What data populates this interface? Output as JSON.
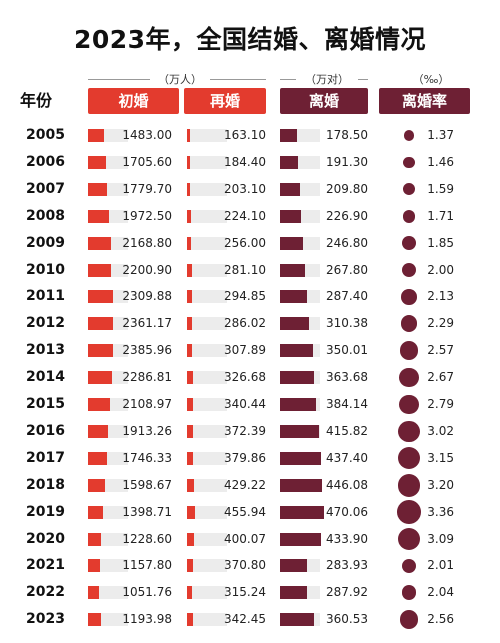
{
  "title": "2023年，全国结婚、离婚情况",
  "units": {
    "marriage": "（万人）",
    "divorce": "（万对）",
    "rate": "（‰）"
  },
  "headers": {
    "year": "年份",
    "first": "初婚",
    "re": "再婚",
    "divorce": "离婚",
    "rate": "离婚率"
  },
  "colors": {
    "marriage": "#e33b2e",
    "divorce": "#6e2034",
    "track": "#ececec"
  },
  "chart_data": {
    "type": "table",
    "title": "2023年，全国结婚、离婚情况",
    "columns": [
      "年份",
      "初婚",
      "再婚",
      "离婚",
      "离婚率"
    ],
    "rows": [
      {
        "year": "2005",
        "first": "1483.00",
        "re": "163.10",
        "divorce": "178.50",
        "rate": "1.37"
      },
      {
        "year": "2006",
        "first": "1705.60",
        "re": "184.40",
        "divorce": "191.30",
        "rate": "1.46"
      },
      {
        "year": "2007",
        "first": "1779.70",
        "re": "203.10",
        "divorce": "209.80",
        "rate": "1.59"
      },
      {
        "year": "2008",
        "first": "1972.50",
        "re": "224.10",
        "divorce": "226.90",
        "rate": "1.71"
      },
      {
        "year": "2009",
        "first": "2168.80",
        "re": "256.00",
        "divorce": "246.80",
        "rate": "1.85"
      },
      {
        "year": "2010",
        "first": "2200.90",
        "re": "281.10",
        "divorce": "267.80",
        "rate": "2.00"
      },
      {
        "year": "2011",
        "first": "2309.88",
        "re": "294.85",
        "divorce": "287.40",
        "rate": "2.13"
      },
      {
        "year": "2012",
        "first": "2361.17",
        "re": "286.02",
        "divorce": "310.38",
        "rate": "2.29"
      },
      {
        "year": "2013",
        "first": "2385.96",
        "re": "307.89",
        "divorce": "350.01",
        "rate": "2.57"
      },
      {
        "year": "2014",
        "first": "2286.81",
        "re": "326.68",
        "divorce": "363.68",
        "rate": "2.67"
      },
      {
        "year": "2015",
        "first": "2108.97",
        "re": "340.44",
        "divorce": "384.14",
        "rate": "2.79"
      },
      {
        "year": "2016",
        "first": "1913.26",
        "re": "372.39",
        "divorce": "415.82",
        "rate": "3.02"
      },
      {
        "year": "2017",
        "first": "1746.33",
        "re": "379.86",
        "divorce": "437.40",
        "rate": "3.15"
      },
      {
        "year": "2018",
        "first": "1598.67",
        "re": "429.22",
        "divorce": "446.08",
        "rate": "3.20"
      },
      {
        "year": "2019",
        "first": "1398.71",
        "re": "455.94",
        "divorce": "470.06",
        "rate": "3.36"
      },
      {
        "year": "2020",
        "first": "1228.60",
        "re": "400.07",
        "divorce": "433.90",
        "rate": "3.09"
      },
      {
        "year": "2021",
        "first": "1157.80",
        "re": "370.80",
        "divorce": "283.93",
        "rate": "2.01"
      },
      {
        "year": "2022",
        "first": "1051.76",
        "re": "315.24",
        "divorce": "287.92",
        "rate": "2.04"
      },
      {
        "year": "2023",
        "first": "1193.98",
        "re": "342.45",
        "divorce": "360.53",
        "rate": "2.56"
      }
    ]
  }
}
